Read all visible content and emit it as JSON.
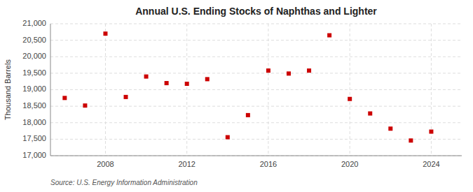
{
  "chart_data": {
    "type": "scatter",
    "title": "Annual U.S. Ending Stocks of Naphthas and Lighter",
    "ylabel": "Thousand Barrels",
    "annotations": [
      "Source: U.S. Energy Information Administration"
    ],
    "x": [
      2006,
      2007,
      2008,
      2009,
      2010,
      2011,
      2012,
      2013,
      2014,
      2015,
      2016,
      2017,
      2018,
      2019,
      2020,
      2021,
      2022,
      2023,
      2024
    ],
    "values": [
      18750,
      18520,
      20700,
      18780,
      19400,
      19200,
      19180,
      19320,
      17560,
      18230,
      19580,
      19490,
      19580,
      20650,
      18720,
      18280,
      17820,
      17460,
      17730
    ],
    "color": "#cc0000",
    "marker": "square",
    "xlim": [
      2005.3,
      2025.5
    ],
    "xticks": [
      2008,
      2012,
      2016,
      2020,
      2024
    ],
    "ylim": [
      17000,
      21000
    ],
    "yticks": [
      {
        "value": 17000,
        "label": "17,000"
      },
      {
        "value": 17500,
        "label": "17,500"
      },
      {
        "value": 18000,
        "label": "18,000"
      },
      {
        "value": 18500,
        "label": "18,500"
      },
      {
        "value": 19000,
        "label": "19,000"
      },
      {
        "value": 19500,
        "label": "19,500"
      },
      {
        "value": 20000,
        "label": "20,000"
      },
      {
        "value": 20500,
        "label": "20,500"
      },
      {
        "value": 21000,
        "label": "21,000"
      }
    ],
    "grid": true
  }
}
